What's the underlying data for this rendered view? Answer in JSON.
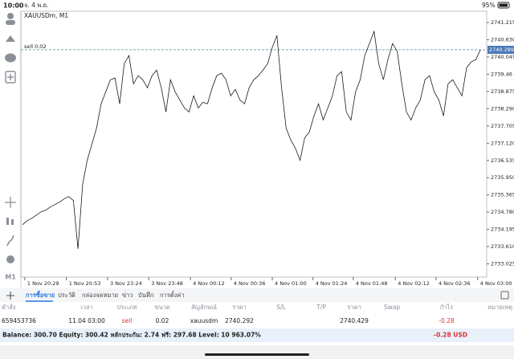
{
  "status_bar": {
    "time": "10:00",
    "date": "จ. 4 พ.ย.",
    "battery": "95%"
  },
  "toolbar": {
    "timeframe": "M1"
  },
  "chart_data": {
    "type": "line",
    "title": "XAUUSDm, M1",
    "color": "#1a1a1a",
    "values": [
      2734.353,
      2734.489,
      2734.571,
      2734.681,
      2734.79,
      2734.845,
      2734.954,
      2735.036,
      2735.118,
      2735.228,
      2735.31,
      2735.173,
      2733.532,
      2735.72,
      2736.54,
      2737.087,
      2737.633,
      2738.454,
      2738.864,
      2739.274,
      2739.329,
      2738.454,
      2739.821,
      2740.094,
      2739.137,
      2739.411,
      2739.274,
      2739.0,
      2739.411,
      2739.602,
      2739.0,
      2738.18,
      2739.274,
      2738.864,
      2738.59,
      2738.317,
      2738.18,
      2738.727,
      2738.317,
      2738.508,
      2738.454,
      2739.0,
      2739.411,
      2739.493,
      2739.274,
      2738.727,
      2738.946,
      2738.59,
      2738.454,
      2739.0,
      2739.274,
      2739.411,
      2739.602,
      2739.821,
      2740.367,
      2740.778,
      2739.0,
      2737.633,
      2737.223,
      2736.95,
      2736.54,
      2737.305,
      2737.497,
      2738.044,
      2738.454,
      2737.907,
      2738.317,
      2738.727,
      2739.411,
      2739.547,
      2738.18,
      2737.907,
      2738.864,
      2739.274,
      2740.094,
      2740.504,
      2740.914,
      2739.821,
      2739.274,
      2739.957,
      2740.504,
      2740.231,
      2739.137,
      2738.18,
      2737.907,
      2738.317,
      2738.59,
      2739.274,
      2739.411,
      2738.864,
      2738.59,
      2738.044,
      2739.137,
      2739.274,
      2739.0,
      2738.727,
      2739.684,
      2739.875,
      2739.957,
      2740.289
    ],
    "xlim": [
      0,
      100
    ],
    "xticks": [
      {
        "value": 0.5,
        "label": "1 Nov 20:29"
      },
      {
        "value": 9.5,
        "label": "1 Nov 20:53"
      },
      {
        "value": 18.4,
        "label": "3 Nov 23:24"
      },
      {
        "value": 27.3,
        "label": "3 Nov 23:48"
      },
      {
        "value": 36.3,
        "label": "4 Nov 00:12"
      },
      {
        "value": 45.1,
        "label": "4 Nov 00:36"
      },
      {
        "value": 54.0,
        "label": "4 Nov 01:00"
      },
      {
        "value": 62.8,
        "label": "4 Nov 01:24"
      },
      {
        "value": 71.5,
        "label": "4 Nov 01:48"
      },
      {
        "value": 80.6,
        "label": "4 Nov 02:12"
      },
      {
        "value": 89.4,
        "label": "4 Nov 02:36"
      },
      {
        "value": 98.4,
        "label": "4 Nov 03:00"
      }
    ],
    "ylim": [
      2732.576,
      2741.598
    ],
    "yticks": [
      2741.215,
      {
        "value": 2740.63,
        "label": "2740.630"
      },
      2740.045,
      2739.46,
      2738.875,
      {
        "value": 2738.29,
        "label": "2738.290"
      },
      2737.705,
      {
        "value": 2737.12,
        "label": "2737.120"
      },
      2736.535,
      {
        "value": 2735.95,
        "label": "2735.950"
      },
      2735.365,
      {
        "value": 2734.78,
        "label": "2734.780"
      },
      2734.195,
      {
        "value": 2733.61,
        "label": "2733.610"
      },
      2733.025
    ],
    "order_line": {
      "label": "sell 0.02",
      "value": 2740.292,
      "color": "#5b9aa6"
    },
    "current_price": 2740.289,
    "current_price_color": "#4a78b8"
  },
  "tabs": [
    "การซื้อขาย",
    "ประวัติ",
    "กล่องจดหมาย",
    "ข่าว",
    "บันทึก",
    "การตั้งค่า"
  ],
  "active_tab": 0,
  "table": {
    "headers": [
      "คำสั่ง",
      "เวลา",
      "ประเภท",
      "ขนาด",
      "สัญลักษณ์",
      "ราคา",
      "S/L",
      "T/P",
      "ราคา",
      "Swap",
      "กำไร",
      "หมายเหตุ"
    ],
    "rows": [
      [
        "659453736",
        "11.04 03:00",
        "sell",
        "0.02",
        "xauusdm",
        "2740.292",
        null,
        null,
        "2740.429",
        null,
        "-0.28",
        null
      ]
    ]
  },
  "footer": {
    "summary": "Balance: 300.70 Equity: 300.42 หลักประกัน: 2.74 ฟรี: 297.68 Level: 10 963.07%",
    "profit": "-0.28 USD"
  }
}
